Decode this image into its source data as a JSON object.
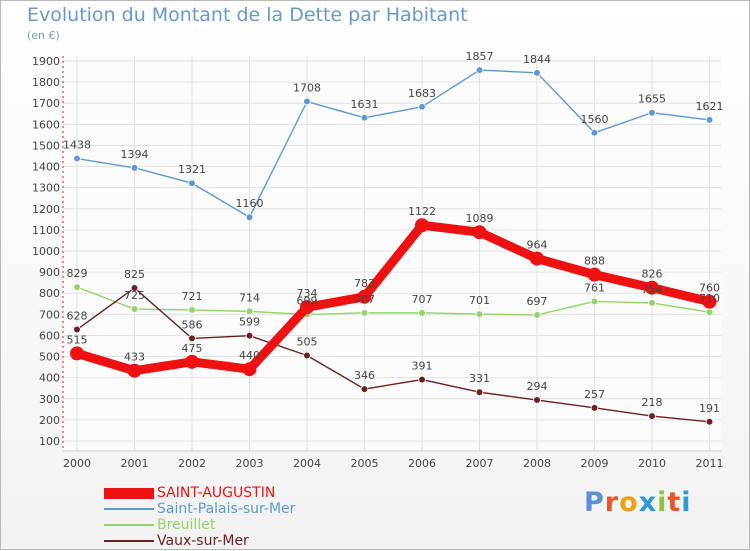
{
  "title": "Evolution du Montant de la Dette par Habitant",
  "subtitle": "(en €)",
  "logo": {
    "text": "Proxiti",
    "colors": [
      "#5b8fd6",
      "#e8572a",
      "#e8a21c",
      "#2e9ad0",
      "#8cc63e",
      "#e8572a",
      "#2e9ad0"
    ]
  },
  "chart_data": {
    "type": "line",
    "title": "Evolution du Montant de la Dette par Habitant",
    "subtitle": "(en €)",
    "xlabel": "",
    "ylabel": "",
    "x": [
      "2000",
      "2001",
      "2002",
      "2003",
      "2004",
      "2005",
      "2006",
      "2007",
      "2008",
      "2009",
      "2010",
      "2011"
    ],
    "ylim": [
      100,
      1900
    ],
    "yticks": [
      100,
      200,
      300,
      400,
      500,
      600,
      700,
      800,
      900,
      1000,
      1100,
      1200,
      1300,
      1400,
      1500,
      1600,
      1700,
      1800,
      1900
    ],
    "grid": true,
    "legend_position": "bottom-left",
    "series": [
      {
        "name": "Saint-Palais-sur-Mer",
        "color": "#5b99d3",
        "values": [
          1438,
          1394,
          1321,
          1160,
          1708,
          1631,
          1683,
          1857,
          1844,
          1560,
          1655,
          1621
        ]
      },
      {
        "name": "Breuillet",
        "color": "#90d46a",
        "values": [
          829,
          725,
          721,
          714,
          699,
          707,
          707,
          701,
          697,
          761,
          754,
          710
        ]
      },
      {
        "name": "Vaux-sur-Mer",
        "color": "#6b1f1f",
        "values": [
          628,
          825,
          586,
          599,
          505,
          346,
          391,
          331,
          294,
          257,
          218,
          191
        ]
      },
      {
        "name": "SAINT-AUGUSTIN",
        "color": "#ee1111",
        "values": [
          515,
          433,
          475,
          440,
          734,
          783,
          1122,
          1089,
          964,
          888,
          826,
          760
        ]
      }
    ]
  },
  "legend": {
    "items": [
      {
        "label": "SAINT-AUGUSTIN",
        "color": "#ee1111"
      },
      {
        "label": "Saint-Palais-sur-Mer",
        "color": "#5b99d3"
      },
      {
        "label": "Breuillet",
        "color": "#90d46a"
      },
      {
        "label": "Vaux-sur-Mer",
        "color": "#6b1f1f"
      }
    ]
  }
}
